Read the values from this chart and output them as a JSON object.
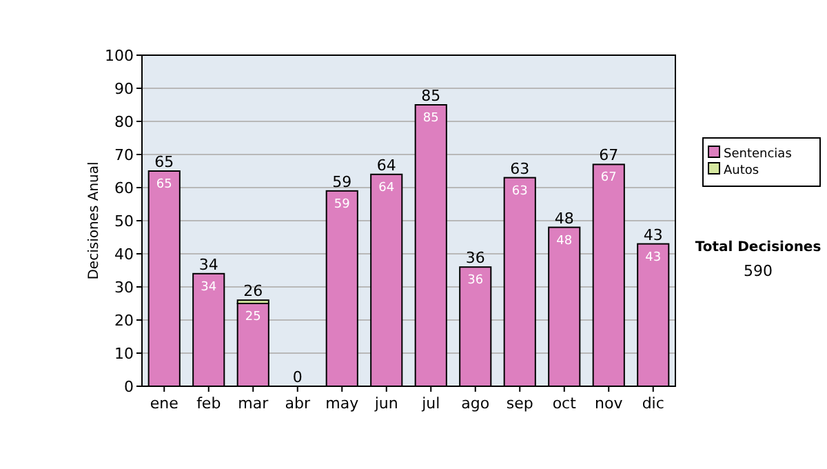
{
  "chart_data": {
    "type": "bar",
    "stacked": true,
    "ylabel": "Decisiones Anual",
    "categories": [
      "ene",
      "feb",
      "mar",
      "abr",
      "may",
      "jun",
      "jul",
      "ago",
      "sep",
      "oct",
      "nov",
      "dic"
    ],
    "series": [
      {
        "name": "Sentencias",
        "color": "#dd7fbf",
        "values": [
          65,
          34,
          25,
          0,
          59,
          64,
          85,
          36,
          63,
          48,
          67,
          43
        ],
        "value_labels": [
          "65",
          "34",
          "25",
          null,
          "59",
          "64",
          "85",
          "36",
          "63",
          "48",
          "67",
          "43"
        ]
      },
      {
        "name": "Autos",
        "color": "#d6e8a0",
        "values": [
          0,
          0,
          1,
          0,
          0,
          0,
          0,
          0,
          0,
          0,
          0,
          0
        ]
      }
    ],
    "totals": [
      "65",
      "34",
      "26",
      "0",
      "59",
      "64",
      "85",
      "36",
      "63",
      "48",
      "67",
      "43"
    ],
    "ylim": [
      0,
      100
    ],
    "yticks": [
      0,
      10,
      20,
      30,
      40,
      50,
      60,
      70,
      80,
      90,
      100
    ],
    "grid": "y",
    "legend": "right",
    "annotations": [
      "Total Decisiones",
      "590"
    ]
  }
}
